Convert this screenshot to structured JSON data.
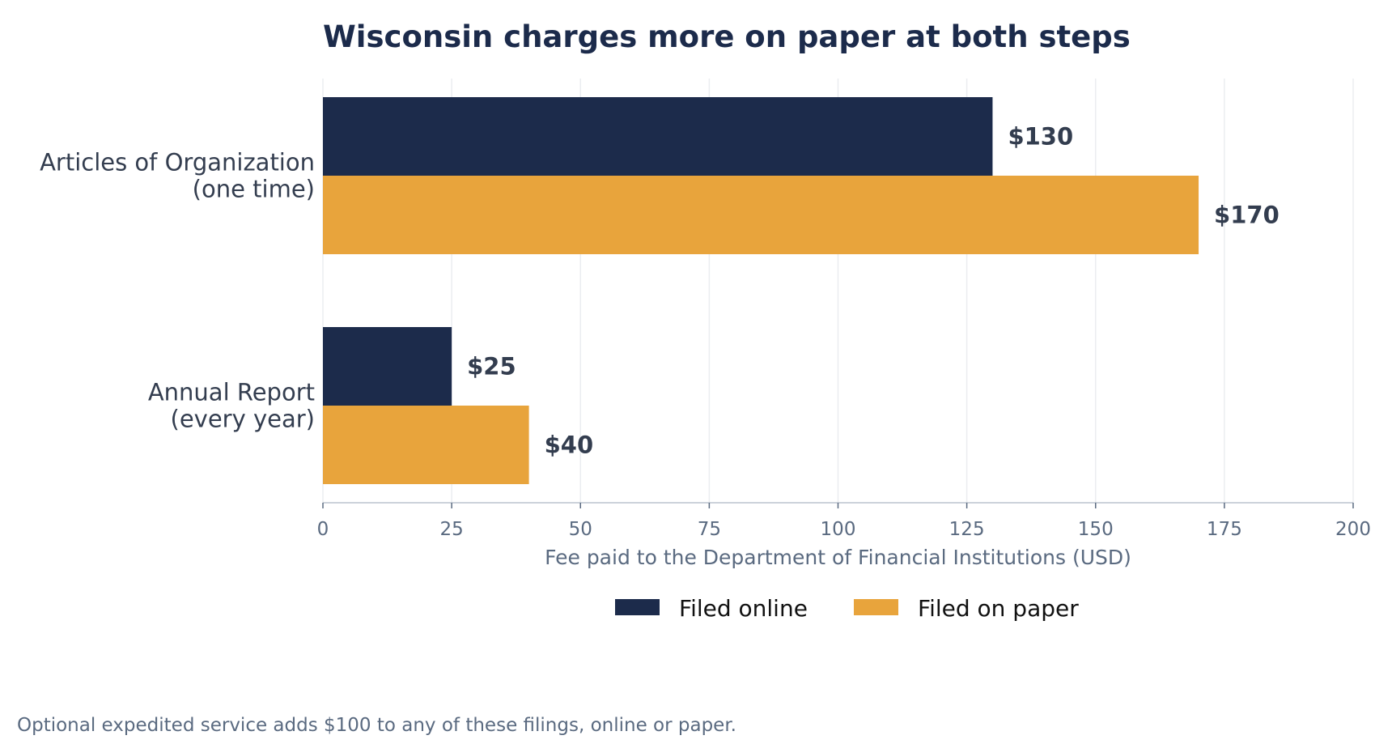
{
  "chart_data": {
    "type": "bar",
    "orientation": "horizontal",
    "title": "Wisconsin charges more on paper at both steps",
    "categories": [
      [
        "Articles of Organization",
        "(one time)"
      ],
      [
        "Annual Report",
        "(every year)"
      ]
    ],
    "series": [
      {
        "name": "Filed online",
        "values": [
          130,
          25
        ],
        "labels": [
          "$130",
          "$25"
        ],
        "color": "#1c2b4b"
      },
      {
        "name": "Filed on paper",
        "values": [
          170,
          40
        ],
        "labels": [
          "$170",
          "$40"
        ],
        "color": "#e8a43c"
      }
    ],
    "xlabel": "Fee paid to the Department of Financial Institutions (USD)",
    "ylabel": "",
    "xlim": [
      0,
      200
    ],
    "xticks": [
      0,
      25,
      50,
      75,
      100,
      125,
      150,
      175,
      200
    ],
    "grid": true,
    "legend_position": "bottom-center",
    "note": "Optional expedited service adds $100 to any of these filings, online or paper."
  }
}
